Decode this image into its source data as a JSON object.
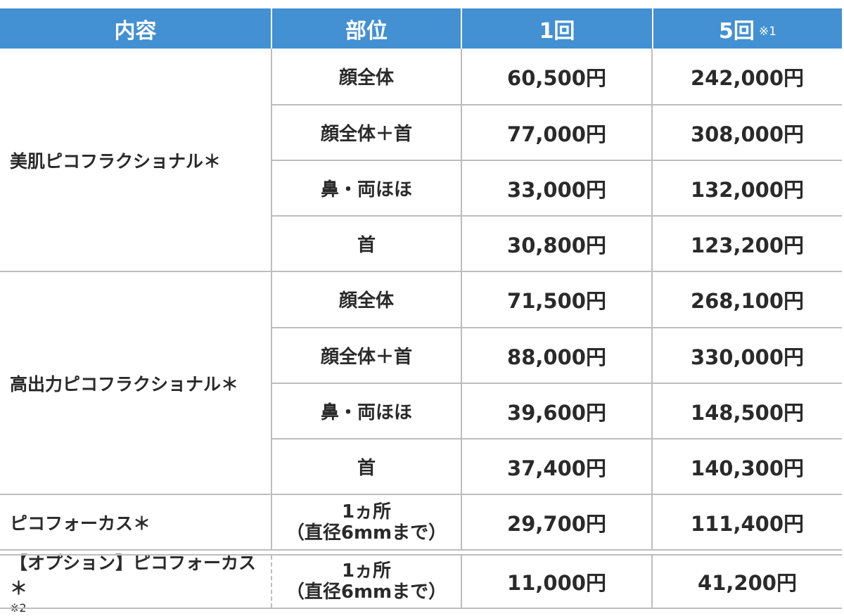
{
  "header": {
    "col_content": "内容",
    "col_part": "部位",
    "col_once": "1回",
    "col_five": "5回",
    "col_five_note": "※1",
    "bg_color": "#4390d2"
  },
  "groups": [
    {
      "name": "美肌ピコフラクショナル＊",
      "rows": [
        {
          "part": "顔全体",
          "once": "60,500円",
          "five": "242,000円"
        },
        {
          "part": "顔全体＋首",
          "once": "77,000円",
          "five": "308,000円"
        },
        {
          "part": "鼻・両ほほ",
          "once": "33,000円",
          "five": "132,000円"
        },
        {
          "part": "首",
          "once": "30,800円",
          "five": "123,200円"
        }
      ]
    },
    {
      "name": "高出力ピコフラクショナル＊",
      "rows": [
        {
          "part": "顔全体",
          "once": "71,500円",
          "five": "268,100円"
        },
        {
          "part": "顔全体＋首",
          "once": "88,000円",
          "five": "330,000円"
        },
        {
          "part": "鼻・両ほほ",
          "once": "39,600円",
          "five": "148,500円"
        },
        {
          "part": "首",
          "once": "37,400円",
          "five": "140,300円"
        }
      ]
    },
    {
      "name": "ピコフォーカス＊",
      "rows": [
        {
          "part_line1": "1ヵ所",
          "part_line2": "（直径6mmまで）",
          "once": "29,700円",
          "five": "111,400円"
        }
      ]
    },
    {
      "name": "【オプション】ピコフォーカス＊",
      "note": "※2",
      "rows": [
        {
          "part_line1": "1ヵ所",
          "part_line2": "（直径6mmまで）",
          "once": "11,000円",
          "five": "41,200円"
        }
      ]
    }
  ]
}
